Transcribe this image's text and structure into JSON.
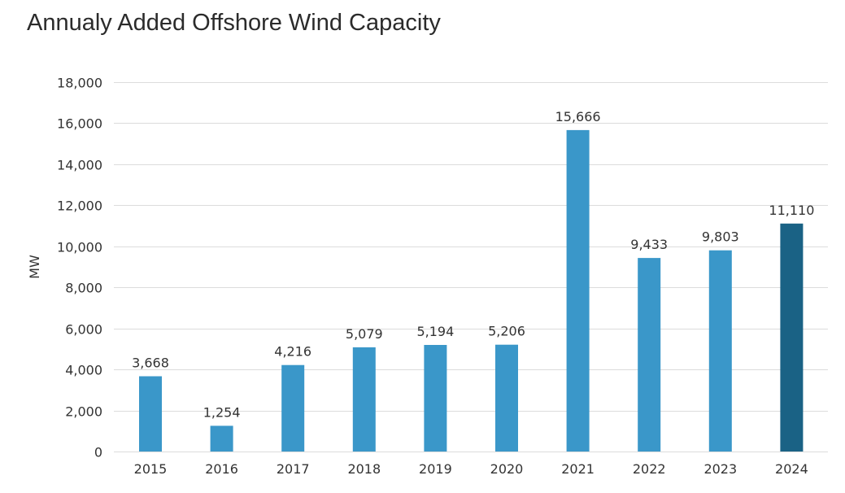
{
  "title": "Annualy Added Offshore Wind Capacity",
  "chart_data": {
    "type": "bar",
    "title": "Annualy Added Offshore Wind Capacity",
    "xlabel": "",
    "ylabel": "MW",
    "ylim": [
      0,
      18000
    ],
    "yticks": [
      0,
      2000,
      4000,
      6000,
      8000,
      10000,
      12000,
      14000,
      16000,
      18000
    ],
    "ytick_labels": [
      "0",
      "2,000",
      "4,000",
      "6,000",
      "8,000",
      "10,000",
      "12,000",
      "14,000",
      "16,000",
      "18,000"
    ],
    "grid": true,
    "categories": [
      "2015",
      "2016",
      "2017",
      "2018",
      "2019",
      "2020",
      "2021",
      "2022",
      "2023",
      "2024"
    ],
    "values": [
      3668,
      1254,
      4216,
      5079,
      5194,
      5206,
      15666,
      9433,
      9803,
      11110
    ],
    "data_labels": [
      "3,668",
      "1,254",
      "4,216",
      "5,079",
      "5,194",
      "5,206",
      "15,666",
      "9,433",
      "9,803",
      "11,110"
    ],
    "colors": {
      "bar": "#3a97c9",
      "highlight": "#1a6285",
      "grid": "#dcdcdc",
      "text": "#333333"
    },
    "highlight_category": "2024"
  }
}
